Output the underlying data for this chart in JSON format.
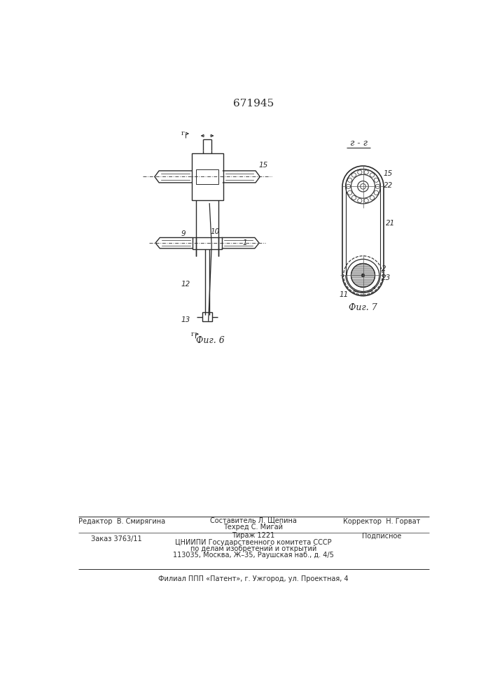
{
  "title": "671945",
  "background_color": "#ffffff",
  "line_color": "#2a2a2a",
  "fig6_label": "Фиг. 6",
  "fig7_label": "Фиг. 7",
  "section_label": "г - г",
  "footer_line1_left": "Редактор  В. Смирягина",
  "footer_line1_center1": "Составитель Л. Щепина",
  "footer_line1_center2": "Техред С. Мигай",
  "footer_line1_right": "Корректор  Н. Горват",
  "footer_line2_left": "Заказ 3763/11",
  "footer_line2_center": "Тираж 1221",
  "footer_line2_right": "Подписное",
  "footer_line3": "ЦНИИПИ Государственного комитета СССР",
  "footer_line4": "по делам изобретений и открытий",
  "footer_line5": "113035, Москва, Ж–35, Раушская наб., д. 4/5",
  "footer_line6": "Филиал ППП «Патент», г. Ужгород, ул. Проектная, 4"
}
